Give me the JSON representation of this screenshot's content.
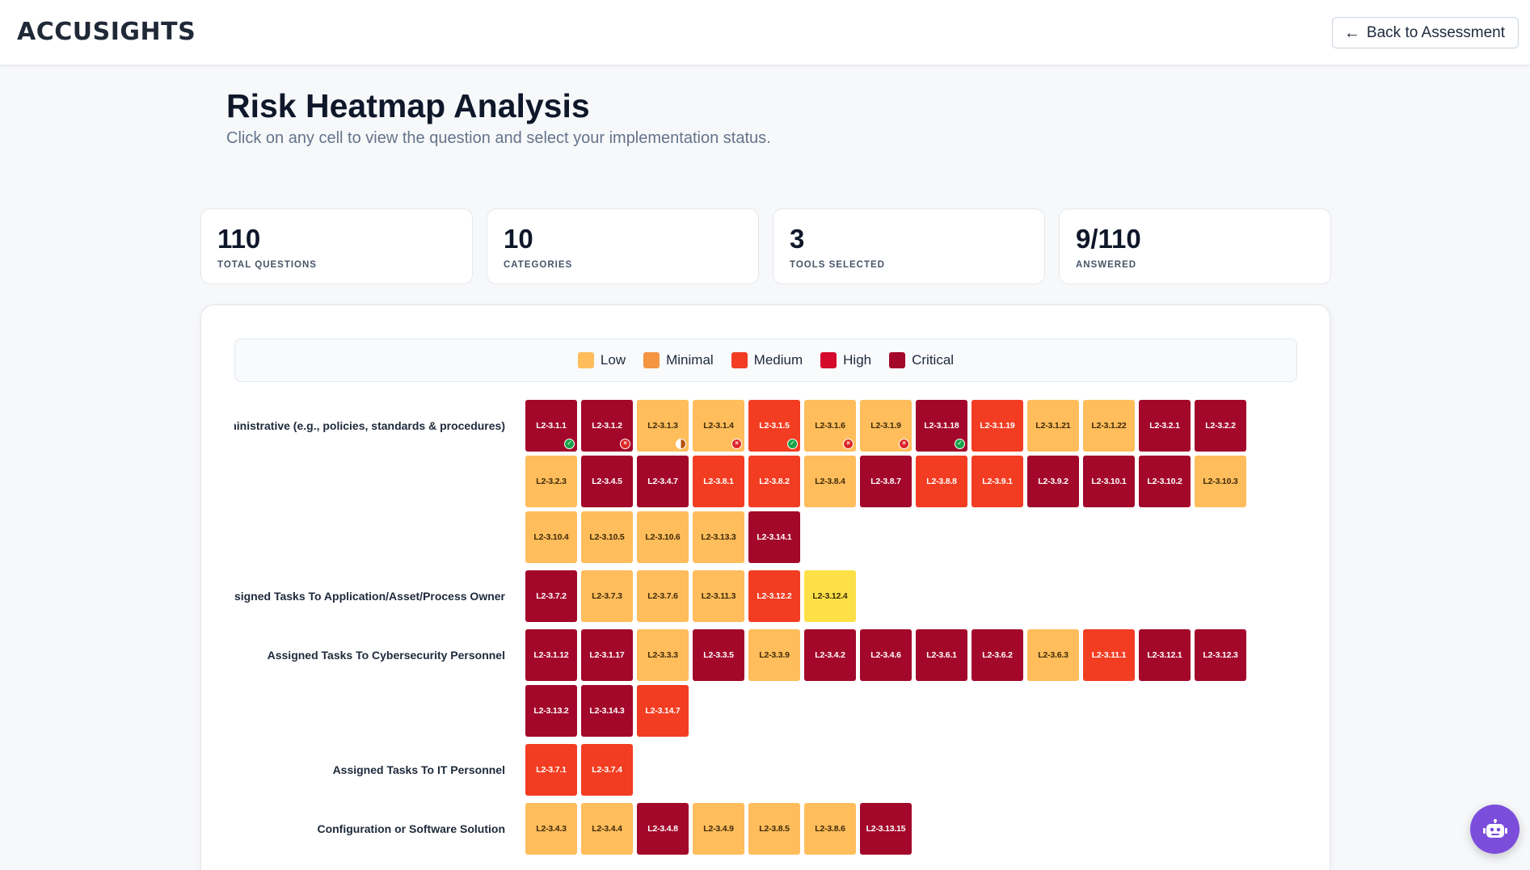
{
  "header": {
    "logo": "ACCUSIGHTS",
    "back_label": "Back to Assessment"
  },
  "page": {
    "title": "Risk Heatmap Analysis",
    "subtitle": "Click on any cell to view the question and select your implementation status."
  },
  "stats": [
    {
      "value": "110",
      "label": "TOTAL QUESTIONS"
    },
    {
      "value": "10",
      "label": "CATEGORIES"
    },
    {
      "value": "3",
      "label": "TOOLS SELECTED"
    },
    {
      "value": "9/110",
      "label": "ANSWERED"
    }
  ],
  "legend": [
    {
      "label": "Low",
      "color": "#ffbd5c"
    },
    {
      "label": "Minimal",
      "color": "#f59542"
    },
    {
      "label": "Medium",
      "color": "#f23d22"
    },
    {
      "label": "High",
      "color": "#d3082b"
    },
    {
      "label": "Critical",
      "color": "#a3082b"
    }
  ],
  "categories": [
    {
      "label": "Administrative (e.g., policies, standards & procedures)",
      "cells": [
        {
          "id": "L2-3.1.1",
          "level": "critical",
          "status": "yes"
        },
        {
          "id": "L2-3.1.2",
          "level": "critical",
          "status": "no"
        },
        {
          "id": "L2-3.1.3",
          "level": "low",
          "status": "partial"
        },
        {
          "id": "L2-3.1.4",
          "level": "low",
          "status": "no"
        },
        {
          "id": "L2-3.1.5",
          "level": "medium",
          "status": "yes"
        },
        {
          "id": "L2-3.1.6",
          "level": "low",
          "status": "no"
        },
        {
          "id": "L2-3.1.9",
          "level": "low",
          "status": "no"
        },
        {
          "id": "L2-3.1.18",
          "level": "critical",
          "status": "yes"
        },
        {
          "id": "L2-3.1.19",
          "level": "medium",
          "status": ""
        },
        {
          "id": "L2-3.1.21",
          "level": "low",
          "status": ""
        },
        {
          "id": "L2-3.1.22",
          "level": "low",
          "status": ""
        },
        {
          "id": "L2-3.2.1",
          "level": "critical",
          "status": ""
        },
        {
          "id": "L2-3.2.2",
          "level": "critical",
          "status": ""
        },
        {
          "id": "L2-3.2.3",
          "level": "low",
          "status": ""
        },
        {
          "id": "L2-3.4.5",
          "level": "critical",
          "status": ""
        },
        {
          "id": "L2-3.4.7",
          "level": "critical",
          "status": ""
        },
        {
          "id": "L2-3.8.1",
          "level": "medium",
          "status": ""
        },
        {
          "id": "L2-3.8.2",
          "level": "medium",
          "status": ""
        },
        {
          "id": "L2-3.8.4",
          "level": "low",
          "status": ""
        },
        {
          "id": "L2-3.8.7",
          "level": "critical",
          "status": ""
        },
        {
          "id": "L2-3.8.8",
          "level": "medium",
          "status": ""
        },
        {
          "id": "L2-3.9.1",
          "level": "medium",
          "status": ""
        },
        {
          "id": "L2-3.9.2",
          "level": "critical",
          "status": ""
        },
        {
          "id": "L2-3.10.1",
          "level": "critical",
          "status": ""
        },
        {
          "id": "L2-3.10.2",
          "level": "critical",
          "status": ""
        },
        {
          "id": "L2-3.10.3",
          "level": "low",
          "status": ""
        },
        {
          "id": "L2-3.10.4",
          "level": "low",
          "status": ""
        },
        {
          "id": "L2-3.10.5",
          "level": "low",
          "status": ""
        },
        {
          "id": "L2-3.10.6",
          "level": "low",
          "status": ""
        },
        {
          "id": "L2-3.13.3",
          "level": "low",
          "status": ""
        },
        {
          "id": "L2-3.14.1",
          "level": "critical",
          "status": ""
        }
      ]
    },
    {
      "label": "Assigned Tasks To Application/Asset/Process Owner",
      "cells": [
        {
          "id": "L2-3.7.2",
          "level": "critical",
          "status": ""
        },
        {
          "id": "L2-3.7.3",
          "level": "low",
          "status": ""
        },
        {
          "id": "L2-3.7.6",
          "level": "low",
          "status": ""
        },
        {
          "id": "L2-3.11.3",
          "level": "low",
          "status": ""
        },
        {
          "id": "L2-3.12.2",
          "level": "medium",
          "status": ""
        },
        {
          "id": "L2-3.12.4",
          "level": "minimal",
          "status": ""
        }
      ]
    },
    {
      "label": "Assigned Tasks To Cybersecurity Personnel",
      "cells": [
        {
          "id": "L2-3.1.12",
          "level": "critical",
          "status": ""
        },
        {
          "id": "L2-3.1.17",
          "level": "critical",
          "status": ""
        },
        {
          "id": "L2-3.3.3",
          "level": "low",
          "status": ""
        },
        {
          "id": "L2-3.3.5",
          "level": "critical",
          "status": ""
        },
        {
          "id": "L2-3.3.9",
          "level": "low",
          "status": ""
        },
        {
          "id": "L2-3.4.2",
          "level": "critical",
          "status": ""
        },
        {
          "id": "L2-3.4.6",
          "level": "critical",
          "status": ""
        },
        {
          "id": "L2-3.6.1",
          "level": "critical",
          "status": ""
        },
        {
          "id": "L2-3.6.2",
          "level": "critical",
          "status": ""
        },
        {
          "id": "L2-3.6.3",
          "level": "low",
          "status": ""
        },
        {
          "id": "L2-3.11.1",
          "level": "medium",
          "status": ""
        },
        {
          "id": "L2-3.12.1",
          "level": "critical",
          "status": ""
        },
        {
          "id": "L2-3.12.3",
          "level": "critical",
          "status": ""
        },
        {
          "id": "L2-3.13.2",
          "level": "critical",
          "status": ""
        },
        {
          "id": "L2-3.14.3",
          "level": "critical",
          "status": ""
        },
        {
          "id": "L2-3.14.7",
          "level": "medium",
          "status": ""
        }
      ]
    },
    {
      "label": "Assigned Tasks To IT Personnel",
      "cells": [
        {
          "id": "L2-3.7.1",
          "level": "medium",
          "status": ""
        },
        {
          "id": "L2-3.7.4",
          "level": "medium",
          "status": ""
        }
      ]
    },
    {
      "label": "Configuration or Software Solution",
      "cells": [
        {
          "id": "L2-3.4.3",
          "level": "low",
          "status": ""
        },
        {
          "id": "L2-3.4.4",
          "level": "low",
          "status": ""
        },
        {
          "id": "L2-3.4.8",
          "level": "critical",
          "status": ""
        },
        {
          "id": "L2-3.4.9",
          "level": "low",
          "status": ""
        },
        {
          "id": "L2-3.8.5",
          "level": "low",
          "status": ""
        },
        {
          "id": "L2-3.8.6",
          "level": "low",
          "status": ""
        },
        {
          "id": "L2-3.13.15",
          "level": "critical",
          "status": ""
        }
      ]
    }
  ],
  "icons": {
    "back": "arrow-left-icon",
    "assistant": "robot-icon",
    "status_yes": "check-icon",
    "status_no": "x-icon",
    "status_partial": "half-circle-icon"
  }
}
